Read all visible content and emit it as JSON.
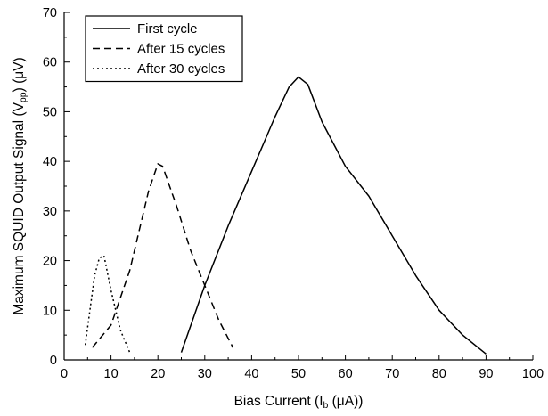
{
  "chart_data": {
    "type": "line",
    "xlabel": "Bias Current (I_b (μA))",
    "ylabel": "Maximum SQUID Output Signal (V_pp) (μV)",
    "xlim": [
      0,
      100
    ],
    "ylim": [
      0,
      70
    ],
    "xticks": [
      0,
      10,
      20,
      30,
      40,
      50,
      60,
      70,
      80,
      90,
      100
    ],
    "yticks": [
      0,
      10,
      20,
      30,
      40,
      50,
      60,
      70
    ],
    "grid": false,
    "legend_position": "top-left",
    "series": [
      {
        "name": "First cycle",
        "line_style": "solid",
        "x": [
          25,
          30,
          35,
          40,
          45,
          48,
          50,
          52,
          55,
          60,
          65,
          70,
          75,
          80,
          85,
          90
        ],
        "y": [
          1.5,
          15,
          27,
          38,
          49,
          55,
          57,
          55.5,
          48,
          39,
          33,
          25,
          17,
          10,
          5,
          1.2
        ]
      },
      {
        "name": "After 15 cycles",
        "line_style": "dashed",
        "x": [
          6,
          10,
          14,
          18,
          20,
          21,
          24,
          27,
          30,
          33,
          36
        ],
        "y": [
          2.5,
          7,
          18,
          34,
          39.5,
          39,
          31,
          22,
          15,
          8,
          2.5
        ]
      },
      {
        "name": "After 30 cycles",
        "line_style": "dotted",
        "x": [
          4.5,
          5.5,
          6.5,
          7.5,
          8.5,
          10,
          12,
          14
        ],
        "y": [
          3,
          10,
          17,
          20.5,
          21,
          14,
          6,
          1.5
        ]
      }
    ]
  }
}
